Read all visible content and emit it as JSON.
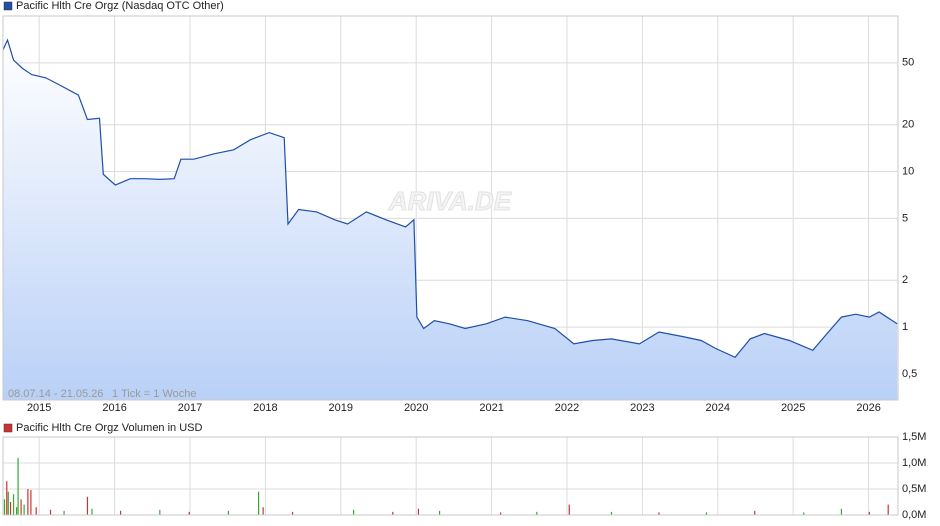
{
  "chart_data": [
    {
      "type": "line",
      "log_scale": true,
      "grid": true,
      "watermark": "ARIVA.DE",
      "annotations": [
        "08.07.14 - 21.05.26",
        "1 Tick = 1 Woche"
      ],
      "xlim": [
        2014.52,
        2026.39
      ],
      "xticks": [
        2015,
        2016,
        2017,
        2018,
        2019,
        2020,
        2021,
        2022,
        2023,
        2024,
        2025,
        2026
      ],
      "ylim": [
        0.34,
        100
      ],
      "yticks": [
        {
          "value": 0.5,
          "label": "0,5"
        },
        1,
        2,
        5,
        10,
        20,
        50
      ],
      "x": [
        2014.52,
        2014.58,
        2014.66,
        2014.78,
        2014.9,
        2015.09,
        2015.27,
        2015.52,
        2015.64,
        2015.8,
        2015.85,
        2016.01,
        2016.21,
        2016.4,
        2016.6,
        2016.79,
        2016.88,
        2017.05,
        2017.32,
        2017.58,
        2017.8,
        2018.05,
        2018.25,
        2018.3,
        2018.44,
        2018.68,
        2018.92,
        2019.09,
        2019.34,
        2019.6,
        2019.86,
        2019.97,
        2020.01,
        2020.1,
        2020.24,
        2020.44,
        2020.65,
        2020.93,
        2021.18,
        2021.48,
        2021.84,
        2022.09,
        2022.34,
        2022.59,
        2022.96,
        2023.22,
        2023.53,
        2023.78,
        2023.97,
        2024.23,
        2024.43,
        2024.62,
        2024.95,
        2025.26,
        2025.45,
        2025.64,
        2025.83,
        2026.01,
        2026.14,
        2026.38
      ],
      "series": [
        {
          "name": "Pacific Hlth Cre Orgz (Nasdaq OTC Other)",
          "color": "#1f4fa8",
          "values": [
            60.5,
            70,
            52,
            46,
            42,
            40,
            36,
            31,
            21.6,
            22,
            9.6,
            8.2,
            9,
            9,
            8.9,
            9,
            12,
            12,
            13,
            13.8,
            16,
            17.8,
            16.5,
            4.6,
            5.7,
            5.5,
            4.9,
            4.6,
            5.5,
            4.9,
            4.4,
            4.9,
            1.16,
            0.98,
            1.1,
            1.05,
            0.98,
            1.05,
            1.16,
            1.1,
            0.98,
            0.78,
            0.82,
            0.84,
            0.78,
            0.93,
            0.87,
            0.82,
            0.73,
            0.64,
            0.84,
            0.91,
            0.82,
            0.71,
            0.91,
            1.16,
            1.21,
            1.16,
            1.25,
            1.05
          ]
        }
      ]
    },
    {
      "type": "bar",
      "grid": true,
      "xlim": [
        2014.52,
        2026.39
      ],
      "xticks": [
        2015,
        2016,
        2017,
        2018,
        2019,
        2020,
        2021,
        2022,
        2023,
        2024,
        2025,
        2026
      ],
      "ylim": [
        0,
        1500000
      ],
      "yticks": [
        {
          "value": 0,
          "label": "0,0M"
        },
        {
          "value": 500000,
          "label": "0,5M"
        },
        {
          "value": 1000000,
          "label": "1,0M"
        },
        {
          "value": 1500000,
          "label": "1,5M"
        }
      ],
      "x": [
        2014.54,
        2014.57,
        2014.59,
        2014.62,
        2014.66,
        2014.7,
        2014.72,
        2014.76,
        2014.8,
        2014.85,
        2014.89,
        2014.96,
        2015.15,
        2015.33,
        2015.64,
        2015.7,
        2016.08,
        2016.6,
        2016.99,
        2017.51,
        2017.91,
        2017.97,
        2018.36,
        2019.17,
        2019.69,
        2020.03,
        2020.31,
        2021.12,
        2021.6,
        2022.03,
        2022.59,
        2023.22,
        2023.85,
        2024.49,
        2025.14,
        2025.64,
        2026.01,
        2026.26
      ],
      "series": [
        {
          "name": "Pacific Hlth Cre Orgz Volumen in USD",
          "color": "#cc3333",
          "values": [
            300000,
            650000,
            450000,
            250000,
            400000,
            150000,
            1100000,
            300000,
            200000,
            500000,
            480000,
            150000,
            100000,
            80000,
            350000,
            120000,
            80000,
            100000,
            60000,
            80000,
            450000,
            150000,
            60000,
            100000,
            60000,
            120000,
            80000,
            50000,
            60000,
            200000,
            60000,
            50000,
            50000,
            80000,
            50000,
            120000,
            60000,
            200000
          ],
          "colors": [
            "#33aa33",
            "#cc3333",
            "#33aa33",
            "#cc3333",
            "#33aa33",
            "#33aa33",
            "#33aa33",
            "#cc3333",
            "#33aa33",
            "#cc3333",
            "#cc3333",
            "#cc3333",
            "#cc3333",
            "#33aa33",
            "#cc3333",
            "#33aa33",
            "#cc3333",
            "#33aa33",
            "#cc3333",
            "#33aa33",
            "#33aa33",
            "#cc3333",
            "#cc3333",
            "#33aa33",
            "#cc3333",
            "#cc3333",
            "#33aa33",
            "#cc3333",
            "#33aa33",
            "#cc3333",
            "#33aa33",
            "#cc3333",
            "#33aa33",
            "#cc3333",
            "#33aa33",
            "#33aa33",
            "#cc3333",
            "#cc3333"
          ]
        }
      ]
    }
  ]
}
